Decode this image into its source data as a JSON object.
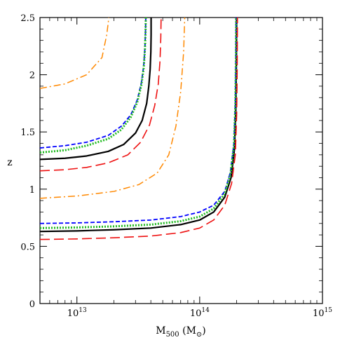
{
  "chart_data": {
    "type": "line",
    "xscale": "log",
    "xlim": [
      5000000000000.0,
      1000000000000000.0
    ],
    "ylim": [
      0,
      2.5
    ],
    "xlabel": {
      "main": "M",
      "sub": "500",
      "unit_open": " (M",
      "unit_sub": "⊙",
      "unit_close": ")"
    },
    "ylabel": "z",
    "xticks": [
      {
        "value": 10000000000000.0,
        "base": "10",
        "exp": "13"
      },
      {
        "value": 100000000000000.0,
        "base": "10",
        "exp": "14"
      },
      {
        "value": 1000000000000000.0,
        "base": "10",
        "exp": "15"
      }
    ],
    "yticks": [
      {
        "value": 0,
        "label": "0"
      },
      {
        "value": 0.5,
        "label": "0.5"
      },
      {
        "value": 1,
        "label": "1"
      },
      {
        "value": 1.5,
        "label": "1.5"
      },
      {
        "value": 2,
        "label": "2"
      },
      {
        "value": 2.5,
        "label": "2.5"
      }
    ],
    "series": [
      {
        "style": "solid",
        "color": "#000000",
        "x": [
          5000000000000.0,
          8000000000000.0,
          12000000000000.0,
          18000000000000.0,
          24000000000000.0,
          30000000000000.0,
          34000000000000.0,
          37000000000000.0,
          38500000000000.0,
          39500000000000.0,
          40000000000000.0,
          40200000000000.0,
          40200000000000.0
        ],
        "y": [
          1.26,
          1.27,
          1.29,
          1.33,
          1.39,
          1.49,
          1.6,
          1.75,
          1.9,
          2.05,
          2.2,
          2.35,
          2.5
        ]
      },
      {
        "style": "dashed",
        "color": "#0000ff",
        "x": [
          5000000000000.0,
          8000000000000.0,
          12000000000000.0,
          18000000000000.0,
          23000000000000.0,
          27500000000000.0,
          31000000000000.0,
          33500000000000.0,
          35000000000000.0,
          35800000000000.0,
          36200000000000.0,
          36400000000000.0
        ],
        "y": [
          1.36,
          1.38,
          1.41,
          1.47,
          1.55,
          1.65,
          1.78,
          1.93,
          2.08,
          2.23,
          2.38,
          2.5
        ]
      },
      {
        "style": "dotted",
        "color": "#22bb22",
        "x": [
          5000000000000.0,
          8000000000000.0,
          12000000000000.0,
          18000000000000.0,
          23000000000000.0,
          27500000000000.0,
          31000000000000.0,
          33500000000000.0,
          35000000000000.0,
          35800000000000.0,
          36200000000000.0,
          36400000000000.0
        ],
        "y": [
          1.32,
          1.34,
          1.38,
          1.44,
          1.52,
          1.63,
          1.76,
          1.91,
          2.06,
          2.22,
          2.37,
          2.5
        ]
      },
      {
        "style": "longdash",
        "color": "#ee1111",
        "x": [
          5000000000000.0,
          8000000000000.0,
          12000000000000.0,
          18000000000000.0,
          26000000000000.0,
          33000000000000.0,
          39000000000000.0,
          43000000000000.0,
          46000000000000.0,
          47500000000000.0,
          48200000000000.0,
          48500000000000.0
        ],
        "y": [
          1.16,
          1.17,
          1.19,
          1.23,
          1.3,
          1.41,
          1.56,
          1.73,
          1.92,
          2.12,
          2.32,
          2.5
        ]
      },
      {
        "style": "dashdot",
        "color": "#ff8800",
        "x": [
          5000000000000.0,
          8000000000000.0,
          12000000000000.0,
          16000000000000.0,
          17500000000000.0,
          18200000000000.0
        ],
        "y": [
          1.88,
          1.92,
          2.0,
          2.15,
          2.35,
          2.5
        ]
      },
      {
        "style": "dashdot",
        "color": "#ff8800",
        "x": [
          5000000000000.0,
          10000000000000.0,
          20000000000000.0,
          32000000000000.0,
          45000000000000.0,
          56000000000000.0,
          64000000000000.0,
          70000000000000.0,
          74000000000000.0,
          75500000000000.0
        ],
        "y": [
          0.92,
          0.94,
          0.98,
          1.04,
          1.14,
          1.3,
          1.55,
          1.85,
          2.2,
          2.5
        ]
      },
      {
        "style": "solid",
        "color": "#000000",
        "x": [
          5000000000000.0,
          10000000000000.0,
          20000000000000.0,
          40000000000000.0,
          70000000000000.0,
          100000000000000.0,
          130000000000000.0,
          160000000000000.0,
          180000000000000.0,
          192000000000000.0,
          197000000000000.0,
          199000000000000.0,
          200000000000000.0
        ],
        "y": [
          0.63,
          0.635,
          0.645,
          0.66,
          0.69,
          0.73,
          0.8,
          0.93,
          1.1,
          1.35,
          1.7,
          2.1,
          2.5
        ]
      },
      {
        "style": "dashed",
        "color": "#0000ff",
        "x": [
          5000000000000.0,
          10000000000000.0,
          20000000000000.0,
          40000000000000.0,
          70000000000000.0,
          100000000000000.0,
          130000000000000.0,
          160000000000000.0,
          178000000000000.0,
          190000000000000.0,
          195000000000000.0,
          197000000000000.0,
          198000000000000.0
        ],
        "y": [
          0.7,
          0.705,
          0.715,
          0.73,
          0.76,
          0.8,
          0.86,
          0.98,
          1.15,
          1.4,
          1.75,
          2.1,
          2.5
        ]
      },
      {
        "style": "dotted",
        "color": "#22bb22",
        "x": [
          5000000000000.0,
          10000000000000.0,
          20000000000000.0,
          40000000000000.0,
          70000000000000.0,
          100000000000000.0,
          130000000000000.0,
          160000000000000.0,
          178000000000000.0,
          190000000000000.0,
          195000000000000.0,
          197000000000000.0,
          198000000000000.0
        ],
        "y": [
          0.66,
          0.665,
          0.675,
          0.69,
          0.72,
          0.76,
          0.83,
          0.96,
          1.13,
          1.38,
          1.73,
          2.1,
          2.5
        ]
      },
      {
        "style": "longdash",
        "color": "#ee1111",
        "x": [
          5000000000000.0,
          10000000000000.0,
          20000000000000.0,
          40000000000000.0,
          70000000000000.0,
          100000000000000.0,
          130000000000000.0,
          160000000000000.0,
          182000000000000.0,
          195000000000000.0,
          200000000000000.0,
          202000000000000.0,
          203000000000000.0
        ],
        "y": [
          0.56,
          0.565,
          0.575,
          0.59,
          0.62,
          0.66,
          0.73,
          0.86,
          1.05,
          1.3,
          1.65,
          2.05,
          2.5
        ]
      }
    ]
  }
}
